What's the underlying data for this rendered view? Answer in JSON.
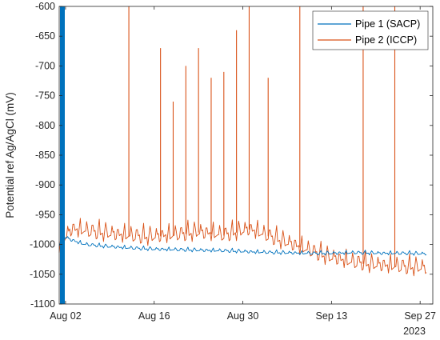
{
  "chart_data": {
    "type": "line",
    "title": "",
    "xlabel": "",
    "ylabel": "Potential ref Ag/AgCl (mV)",
    "x_year_label": "2023",
    "xlim": [
      "2023-08-01",
      "2023-09-29"
    ],
    "ylim": [
      -1100,
      -600
    ],
    "y_ticks": [
      -1100,
      -1050,
      -1000,
      -950,
      -900,
      -850,
      -800,
      -750,
      -700,
      -650,
      -600
    ],
    "y_tick_labels": [
      "-1100",
      "-1050",
      "-1000",
      "-950",
      "-900",
      "-850",
      "-800",
      "-750",
      "-700",
      "-650",
      "-600"
    ],
    "x_ticks": [
      "2023-08-02",
      "2023-08-16",
      "2023-08-30",
      "2023-09-13",
      "2023-09-27"
    ],
    "x_tick_labels": [
      "Aug 02",
      "Aug 16",
      "Aug 30",
      "Sep 13",
      "Sep 27"
    ],
    "grid": false,
    "legend_position": "top-right",
    "series": [
      {
        "name": "Pipe 1 (SACP)",
        "color": "#0072BD",
        "points": [
          [
            "2023-08-01",
            -1000
          ],
          [
            "2023-08-02",
            -988
          ],
          [
            "2023-08-03",
            -993
          ],
          [
            "2023-08-05",
            -1000
          ],
          [
            "2023-08-08",
            -1003
          ],
          [
            "2023-08-12",
            -1006
          ],
          [
            "2023-08-16",
            -1008
          ],
          [
            "2023-08-20",
            -1009
          ],
          [
            "2023-08-24",
            -1010
          ],
          [
            "2023-08-28",
            -1011
          ],
          [
            "2023-09-01",
            -1013
          ],
          [
            "2023-09-05",
            -1014
          ],
          [
            "2023-09-09",
            -1015
          ],
          [
            "2023-09-13",
            -1015
          ],
          [
            "2023-09-17",
            -1014
          ],
          [
            "2023-09-21",
            -1015
          ],
          [
            "2023-09-25",
            -1015
          ],
          [
            "2023-09-28",
            -1016
          ]
        ],
        "thick_segment": {
          "x": "2023-08-01",
          "from": -1100,
          "to": -600
        }
      },
      {
        "name": "Pipe 2 (ICCP)",
        "color": "#D95319",
        "points": [
          [
            "2023-08-01",
            -1000
          ],
          [
            "2023-08-03",
            -975
          ],
          [
            "2023-08-07",
            -980
          ],
          [
            "2023-08-11",
            -985
          ],
          [
            "2023-08-15",
            -988
          ],
          [
            "2023-08-19",
            -985
          ],
          [
            "2023-08-23",
            -980
          ],
          [
            "2023-08-27",
            -985
          ],
          [
            "2023-08-31",
            -975
          ],
          [
            "2023-09-04",
            -990
          ],
          [
            "2023-09-08",
            -1005
          ],
          [
            "2023-09-12",
            -1020
          ],
          [
            "2023-09-16",
            -1030
          ],
          [
            "2023-09-20",
            -1035
          ],
          [
            "2023-09-24",
            -1038
          ],
          [
            "2023-09-28",
            -1040
          ]
        ],
        "spikes": [
          [
            "2023-08-12",
            -600
          ],
          [
            "2023-08-17",
            -670
          ],
          [
            "2023-08-19",
            -760
          ],
          [
            "2023-08-21",
            -700
          ],
          [
            "2023-08-23",
            -670
          ],
          [
            "2023-08-25",
            -720
          ],
          [
            "2023-08-27",
            -710
          ],
          [
            "2023-08-29",
            -640
          ],
          [
            "2023-08-31",
            -600
          ],
          [
            "2023-09-03",
            -720
          ],
          [
            "2023-09-08",
            -600
          ],
          [
            "2023-09-18",
            -600
          ],
          [
            "2023-09-23",
            -600
          ]
        ]
      }
    ]
  }
}
